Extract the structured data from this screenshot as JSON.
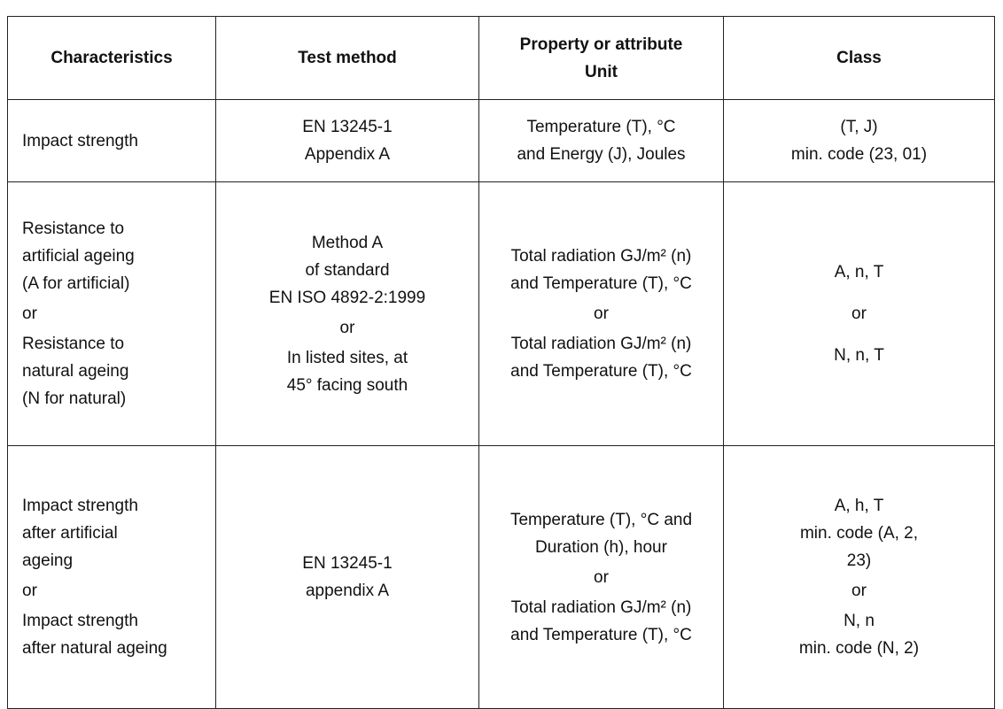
{
  "table": {
    "header": [
      [
        "Characteristics"
      ],
      [
        "Test method"
      ],
      [
        "Property or attribute",
        "Unit"
      ],
      [
        "Class"
      ]
    ],
    "rows": [
      [
        [
          "Impact strength"
        ],
        [
          "EN 13245-1",
          "Appendix A"
        ],
        [
          "Temperature (T), °C",
          "and Energy (J), Joules"
        ],
        [
          "(T, J)",
          "min. code (23, 01)"
        ]
      ],
      [
        [
          "Resistance to",
          "artificial ageing",
          "(A for artificial)",
          "or",
          "Resistance to",
          "natural ageing",
          "(N for natural)"
        ],
        [
          "Method A",
          "of standard",
          "EN ISO 4892-2:1999",
          "or",
          "In listed sites, at",
          "45° facing south"
        ],
        [
          "Total radiation GJ/m² (n)",
          "and Temperature (T), °C",
          "or",
          "Total radiation GJ/m² (n)",
          "and Temperature (T), °C"
        ],
        [
          "A, n, T",
          "or",
          "N, n, T"
        ]
      ],
      [
        [
          "Impact strength",
          "after artificial",
          "ageing",
          "or",
          "Impact strength",
          "after natural ageing"
        ],
        [
          "EN 13245-1",
          "appendix A"
        ],
        [
          "Temperature (T), °C and",
          "Duration (h), hour",
          "or",
          "Total radiation GJ/m² (n)",
          "and Temperature (T), °C"
        ],
        [
          "A, h, T",
          "min. code (A, 2,",
          "23)",
          "or",
          "N, n",
          "min. code (N, 2)"
        ]
      ]
    ]
  }
}
